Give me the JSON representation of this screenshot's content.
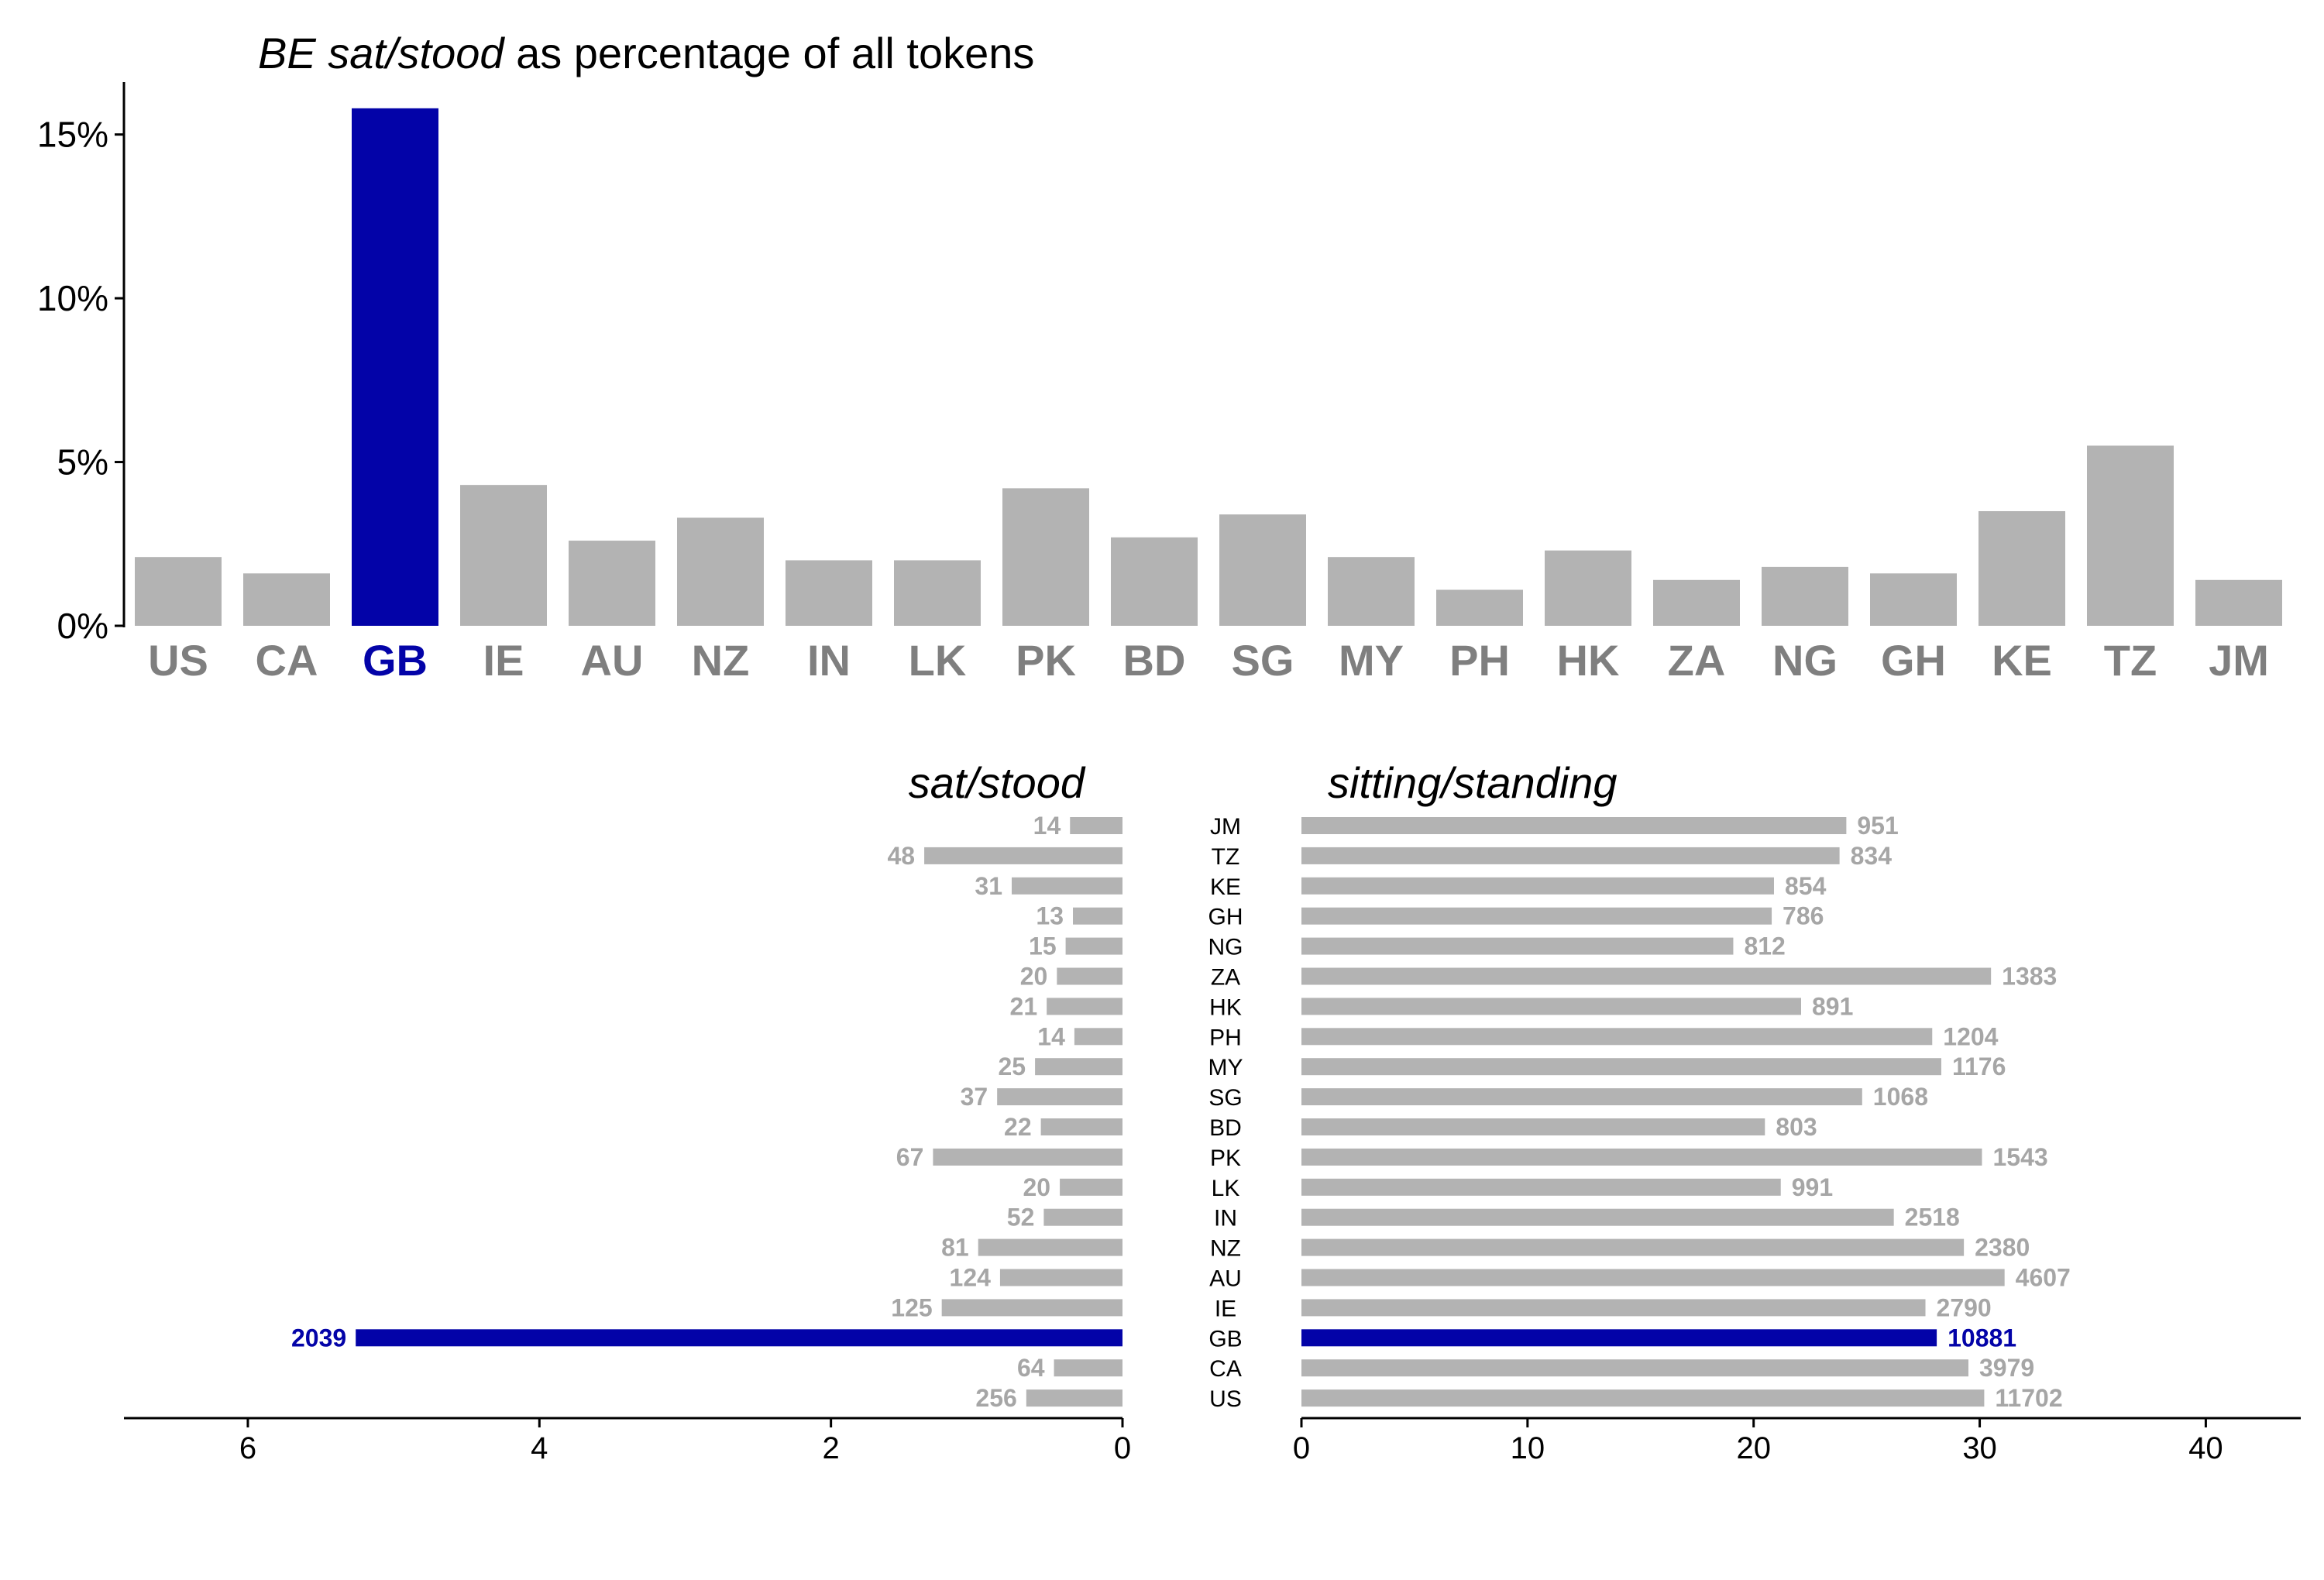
{
  "colors": {
    "default": "#b3b3b3",
    "highlight": "#0303a8",
    "label_default": "#7f7f7f",
    "value_default": "#a6a6a6"
  },
  "highlight_category": "GB",
  "chart_data": [
    {
      "type": "bar",
      "title_italic": "BE sat/stood",
      "title_rest": " as percentage of all tokens",
      "categories": [
        "US",
        "CA",
        "GB",
        "IE",
        "AU",
        "NZ",
        "IN",
        "LK",
        "PK",
        "BD",
        "SG",
        "MY",
        "PH",
        "HK",
        "ZA",
        "NG",
        "GH",
        "KE",
        "TZ",
        "JM"
      ],
      "values": [
        2.1,
        1.6,
        15.8,
        4.3,
        2.6,
        3.3,
        2.0,
        2.0,
        4.2,
        2.7,
        3.4,
        2.1,
        1.1,
        2.3,
        1.4,
        1.8,
        1.6,
        3.5,
        5.5,
        1.4
      ],
      "unit": "%",
      "ylim": [
        0,
        16.6
      ],
      "yticks": [
        0,
        5,
        10,
        15
      ],
      "ytick_labels": [
        "0%",
        "5%",
        "10%",
        "15%"
      ]
    },
    {
      "type": "bar",
      "orientation": "horizontal",
      "direction": "reversed",
      "title": "sat/stood",
      "categories": [
        "US",
        "CA",
        "GB",
        "IE",
        "AU",
        "NZ",
        "IN",
        "LK",
        "PK",
        "BD",
        "SG",
        "MY",
        "PH",
        "HK",
        "ZA",
        "NG",
        "GH",
        "KE",
        "TZ",
        "JM"
      ],
      "values": [
        0.66,
        0.47,
        5.26,
        1.24,
        0.84,
        0.99,
        0.54,
        0.43,
        1.3,
        0.56,
        0.86,
        0.6,
        0.33,
        0.52,
        0.45,
        0.39,
        0.34,
        0.76,
        1.36,
        0.36
      ],
      "counts": [
        256,
        64,
        2039,
        125,
        124,
        81,
        52,
        20,
        67,
        22,
        37,
        25,
        14,
        21,
        20,
        15,
        13,
        31,
        48,
        14
      ],
      "xlim": [
        0,
        6.85
      ],
      "xticks": [
        0,
        2,
        4,
        6
      ]
    },
    {
      "type": "bar",
      "orientation": "horizontal",
      "title": "sitting/standing",
      "categories": [
        "US",
        "CA",
        "GB",
        "IE",
        "AU",
        "NZ",
        "IN",
        "LK",
        "PK",
        "BD",
        "SG",
        "MY",
        "PH",
        "HK",
        "ZA",
        "NG",
        "GH",
        "KE",
        "TZ",
        "JM"
      ],
      "values": [
        30.2,
        29.5,
        28.1,
        27.6,
        31.1,
        29.3,
        26.2,
        21.2,
        30.1,
        20.5,
        24.8,
        28.3,
        27.9,
        22.1,
        30.5,
        19.1,
        20.8,
        20.9,
        23.8,
        24.1
      ],
      "counts": [
        11702,
        3979,
        10881,
        2790,
        4607,
        2380,
        2518,
        991,
        1543,
        803,
        1068,
        1176,
        1204,
        891,
        1383,
        812,
        786,
        854,
        834,
        951
      ],
      "xlim": [
        0,
        44.2
      ],
      "xticks": [
        0,
        10,
        20,
        30,
        40
      ]
    }
  ]
}
